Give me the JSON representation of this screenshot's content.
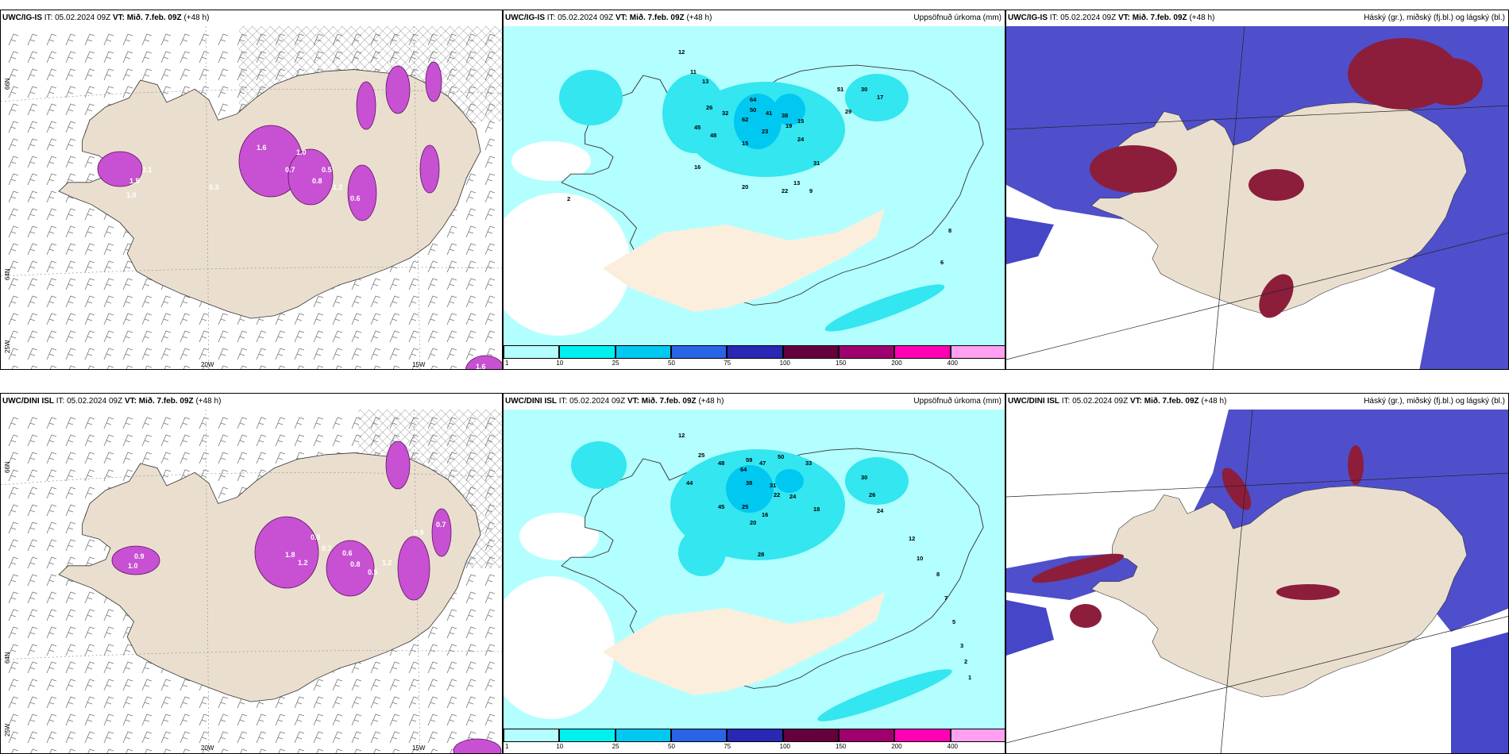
{
  "top_left": {
    "model": "UWC/IG-IS",
    "it_label": "IT:",
    "it": "05.02.2024 09Z",
    "vt_label": "VT:",
    "vt": "Mið. 7.feb. 09Z",
    "lead": "(+48 h)"
  },
  "top_mid": {
    "model": "UWC/IG-IS",
    "it_label": "IT:",
    "it": "05.02.2024 09Z",
    "vt_label": "VT:",
    "vt": "Mið. 7.feb. 09Z",
    "lead": "(+48 h)",
    "right": "Uppsöfnuð úrkoma (mm)"
  },
  "top_right": {
    "model": "UWC/IG-IS",
    "it_label": "IT:",
    "it": "05.02.2024 09Z",
    "vt_label": "VT:",
    "vt": "Mið. 7.feb. 09Z",
    "lead": "(+48 h)",
    "right": "Háský (gr.), miðský (fj.bl.) og lágský (bl.)"
  },
  "bot_left": {
    "model": "UWC/DINI ISL",
    "it_label": "IT:",
    "it": "05.02.2024 09Z",
    "vt_label": "VT:",
    "vt": "Mið. 7.feb. 09Z",
    "lead": "(+48 h)"
  },
  "bot_mid": {
    "model": "UWC/DINI ISL",
    "it_label": "IT:",
    "it": "05.02.2024 09Z",
    "vt_label": "VT:",
    "vt": "Mið. 7.feb. 09Z",
    "lead": "(+48 h)",
    "right": "Uppsöfnuð úrkoma (mm)"
  },
  "bot_right": {
    "model": "UWC/DINI ISL",
    "it_label": "IT:",
    "it": "05.02.2024 09Z",
    "vt_label": "VT:",
    "vt": "Mið. 7.feb. 09Z",
    "lead": "(+48 h)",
    "right": "Háský (gr.), miðský (fj.bl.) og lágský (bl.)"
  },
  "axes": {
    "lat_66": "66N",
    "lat_64": "64N",
    "lon_25": "25W",
    "lon_20": "20W",
    "lon_15": "15W"
  },
  "legend": {
    "labels": [
      "1",
      "10",
      "25",
      "50",
      "75",
      "100",
      "150",
      "200",
      "400"
    ],
    "colors": [
      "#b3ffff",
      "#00f0f0",
      "#00c8f0",
      "#2a64e6",
      "#2828b4",
      "#64003c",
      "#a0006e",
      "#ff00b4",
      "#ffa0f0"
    ]
  },
  "colors": {
    "land": "#eadfcf",
    "sea_light": "#b3ffff",
    "cyan": "#33e6f0",
    "cloud_blue": "#4646c8",
    "cloud_red": "#8c1e3c",
    "precip_magenta": "#c850d2"
  },
  "precip_top": [
    {
      "v": "12"
    },
    {
      "v": "11"
    },
    {
      "v": "13"
    },
    {
      "v": "26"
    },
    {
      "v": "32"
    },
    {
      "v": "64"
    },
    {
      "v": "50"
    },
    {
      "v": "41"
    },
    {
      "v": "62"
    },
    {
      "v": "38"
    },
    {
      "v": "23"
    },
    {
      "v": "19"
    },
    {
      "v": "24"
    },
    {
      "v": "45"
    },
    {
      "v": "48"
    },
    {
      "v": "15"
    },
    {
      "v": "16"
    },
    {
      "v": "22"
    },
    {
      "v": "31"
    },
    {
      "v": "51"
    },
    {
      "v": "30"
    },
    {
      "v": "29"
    },
    {
      "v": "17"
    },
    {
      "v": "15"
    },
    {
      "v": "13"
    },
    {
      "v": "9"
    },
    {
      "v": "20"
    },
    {
      "v": "8"
    },
    {
      "v": "6"
    },
    {
      "v": "2"
    }
  ],
  "precip_bot": [
    {
      "v": "12"
    },
    {
      "v": "25"
    },
    {
      "v": "48"
    },
    {
      "v": "59"
    },
    {
      "v": "47"
    },
    {
      "v": "50"
    },
    {
      "v": "64"
    },
    {
      "v": "38"
    },
    {
      "v": "31"
    },
    {
      "v": "33"
    },
    {
      "v": "22"
    },
    {
      "v": "24"
    },
    {
      "v": "16"
    },
    {
      "v": "44"
    },
    {
      "v": "45"
    },
    {
      "v": "25"
    },
    {
      "v": "20"
    },
    {
      "v": "28"
    },
    {
      "v": "18"
    },
    {
      "v": "30"
    },
    {
      "v": "26"
    },
    {
      "v": "24"
    },
    {
      "v": "12"
    },
    {
      "v": "10"
    },
    {
      "v": "8"
    },
    {
      "v": "7"
    },
    {
      "v": "5"
    },
    {
      "v": "3"
    },
    {
      "v": "2"
    },
    {
      "v": "1"
    }
  ],
  "snow_top": [
    {
      "v": "2.1"
    },
    {
      "v": "1.5"
    },
    {
      "v": "1.0"
    },
    {
      "v": "1.6"
    },
    {
      "v": "0.7"
    },
    {
      "v": "1.0"
    },
    {
      "v": "0.5"
    },
    {
      "v": "0.8"
    },
    {
      "v": "1.2"
    },
    {
      "v": "0.6"
    },
    {
      "v": "0.3"
    },
    {
      "v": "1.6"
    }
  ],
  "snow_bot": [
    {
      "v": "0.9"
    },
    {
      "v": "1.0"
    },
    {
      "v": "1.8"
    },
    {
      "v": "1.2"
    },
    {
      "v": "0.5"
    },
    {
      "v": "0.7"
    },
    {
      "v": "0.6"
    },
    {
      "v": "0.8"
    },
    {
      "v": "0.5"
    },
    {
      "v": "1.2"
    },
    {
      "v": "0.9"
    },
    {
      "v": "0.7"
    }
  ]
}
